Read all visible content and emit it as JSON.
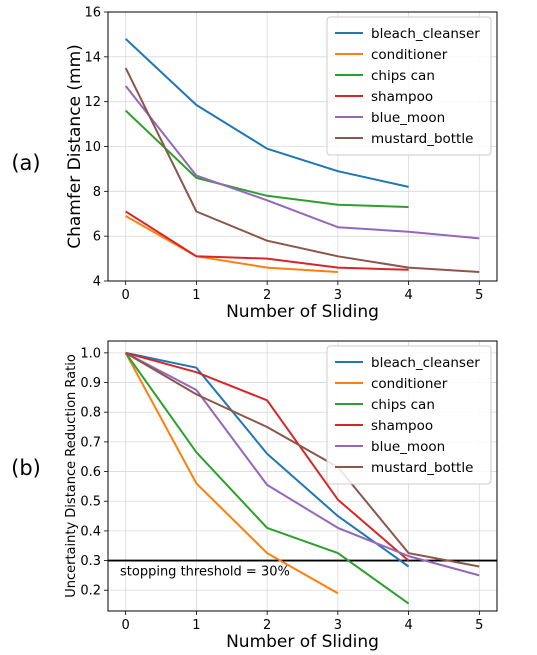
{
  "chart_data": [
    {
      "type": "line",
      "panel_label": "(a)",
      "xlabel": "Number of Sliding",
      "ylabel": "Chamfer Distance (mm)",
      "xlim": [
        -0.25,
        5.25
      ],
      "ylim": [
        4,
        16
      ],
      "xticks": [
        0,
        1,
        2,
        3,
        4,
        5
      ],
      "yticks": [
        4,
        6,
        8,
        10,
        12,
        14,
        16
      ],
      "grid": true,
      "legend_position": "top-right",
      "series": [
        {
          "name": "bleach_cleanser",
          "color": "#1f77b4",
          "x": [
            0,
            1,
            2,
            3,
            4
          ],
          "values": [
            14.8,
            11.85,
            9.9,
            8.9,
            8.2
          ]
        },
        {
          "name": "conditioner",
          "color": "#ff7f0e",
          "x": [
            0,
            1,
            2,
            3
          ],
          "values": [
            6.9,
            5.1,
            4.6,
            4.4
          ]
        },
        {
          "name": "chips can",
          "color": "#2ca02c",
          "x": [
            0,
            1,
            2,
            3,
            4
          ],
          "values": [
            11.6,
            8.6,
            7.8,
            7.4,
            7.3
          ]
        },
        {
          "name": "shampoo",
          "color": "#d62728",
          "x": [
            0,
            1,
            2,
            3,
            4
          ],
          "values": [
            7.1,
            5.1,
            5.0,
            4.6,
            4.5
          ]
        },
        {
          "name": "blue_moon",
          "color": "#9467bd",
          "x": [
            0,
            1,
            2,
            3,
            4,
            5
          ],
          "values": [
            12.7,
            8.7,
            7.6,
            6.4,
            6.2,
            5.9
          ]
        },
        {
          "name": "mustard_bottle",
          "color": "#8c564b",
          "x": [
            0,
            1,
            2,
            3,
            4,
            5
          ],
          "values": [
            13.5,
            7.1,
            5.8,
            5.1,
            4.6,
            4.4
          ]
        }
      ]
    },
    {
      "type": "line",
      "panel_label": "(b)",
      "xlabel": "Number of Sliding",
      "ylabel": "Uncertainty Distance Reduction Ratio",
      "xlim": [
        -0.25,
        5.25
      ],
      "ylim": [
        0.13,
        1.04
      ],
      "xticks": [
        0,
        1,
        2,
        3,
        4,
        5
      ],
      "yticks": [
        0.2,
        0.3,
        0.4,
        0.5,
        0.6,
        0.7,
        0.8,
        0.9,
        1.0
      ],
      "grid": true,
      "legend_position": "top-right",
      "threshold": {
        "value": 0.3,
        "color": "#000000",
        "label": "stopping threshold = 30%"
      },
      "series": [
        {
          "name": "bleach_cleanser",
          "color": "#1f77b4",
          "x": [
            0,
            1,
            2,
            3,
            4
          ],
          "values": [
            1.0,
            0.95,
            0.66,
            0.45,
            0.28
          ]
        },
        {
          "name": "conditioner",
          "color": "#ff7f0e",
          "x": [
            0,
            1,
            2,
            3
          ],
          "values": [
            1.0,
            0.56,
            0.325,
            0.19
          ]
        },
        {
          "name": "chips can",
          "color": "#2ca02c",
          "x": [
            0,
            1,
            2,
            3,
            4
          ],
          "values": [
            1.0,
            0.665,
            0.41,
            0.325,
            0.155
          ]
        },
        {
          "name": "shampoo",
          "color": "#d62728",
          "x": [
            0,
            1,
            2,
            3,
            4
          ],
          "values": [
            1.0,
            0.935,
            0.84,
            0.505,
            0.3
          ]
        },
        {
          "name": "blue_moon",
          "color": "#9467bd",
          "x": [
            0,
            1,
            2,
            3,
            4,
            5
          ],
          "values": [
            1.0,
            0.875,
            0.555,
            0.41,
            0.315,
            0.25
          ]
        },
        {
          "name": "mustard_bottle",
          "color": "#8c564b",
          "x": [
            0,
            1,
            2,
            3,
            4,
            5
          ],
          "values": [
            1.0,
            0.86,
            0.75,
            0.615,
            0.325,
            0.28
          ]
        }
      ]
    }
  ]
}
